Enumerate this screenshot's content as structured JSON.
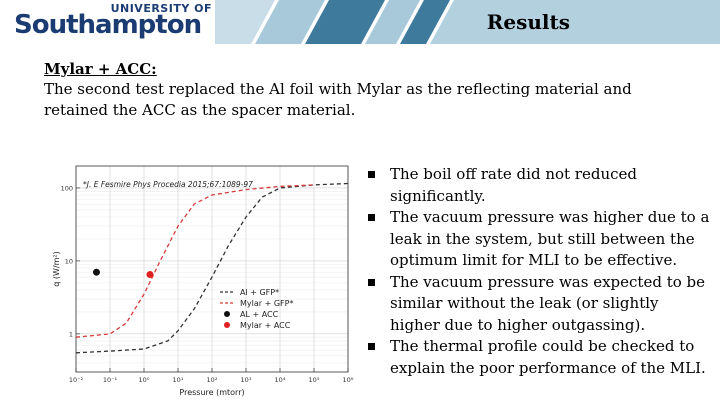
{
  "header": {
    "logo_top": "UNIVERSITY OF",
    "logo_main": "Southampton",
    "title": "Results",
    "colors": {
      "navy": "#1b3c73",
      "teal": "#3d7a9c",
      "light": "#a8c9da"
    }
  },
  "content": {
    "subtitle": "Mylar + ACC:",
    "intro": "The second test replaced the Al foil with Mylar as the reflecting material and retained the ACC as the spacer material.",
    "bullets": [
      "The boil off rate did not reduced significantly.",
      "The vacuum pressure was higher due to a leak in the system, but still between the optimum limit for MLI to be effective.",
      "The vacuum pressure was expected to be similar without the leak (or slightly higher due to higher outgassing).",
      "The thermal profile could be checked to explain the poor performance of the MLI."
    ]
  },
  "chart_data": {
    "type": "line",
    "citation": "*J. E Fesmire Phys Procedia 2015;67:1089-97",
    "xlabel": "Pressure (mtorr)",
    "ylabel": "q (W/m²)",
    "x_scale": "log",
    "y_scale": "log",
    "xlim": [
      0.01,
      1000000
    ],
    "ylim": [
      0.3,
      200
    ],
    "x_ticks": [
      "10⁻²",
      "10⁻¹",
      "10⁰",
      "10¹",
      "10²",
      "10³",
      "10⁴",
      "10⁵",
      "10⁶"
    ],
    "y_ticks": [
      "100",
      "10",
      "1"
    ],
    "grid": true,
    "legend": "lower-right",
    "series": [
      {
        "name": "Al + GFP*",
        "style": "dashed",
        "color": "#333333",
        "x": [
          0.01,
          0.1,
          1,
          5,
          10,
          30,
          100,
          300,
          1000,
          3000,
          10000,
          100000,
          1000000
        ],
        "y": [
          0.55,
          0.58,
          0.62,
          0.8,
          1.1,
          2.2,
          6,
          16,
          40,
          75,
          100,
          110,
          115
        ]
      },
      {
        "name": "Mylar + GFP*",
        "style": "dashed",
        "color": "#d63a3a",
        "x": [
          0.01,
          0.1,
          0.3,
          1,
          3,
          10,
          30,
          100,
          1000,
          10000,
          100000
        ],
        "y": [
          0.9,
          1.0,
          1.4,
          3.5,
          10,
          30,
          60,
          80,
          95,
          105,
          110
        ]
      },
      {
        "name": "AL + ACC",
        "style": "point",
        "color": "#111111",
        "x": [
          0.04
        ],
        "y": [
          7
        ]
      },
      {
        "name": "Mylar + ACC",
        "style": "point",
        "color": "#e02020",
        "x": [
          1.5
        ],
        "y": [
          6.5
        ]
      }
    ]
  }
}
